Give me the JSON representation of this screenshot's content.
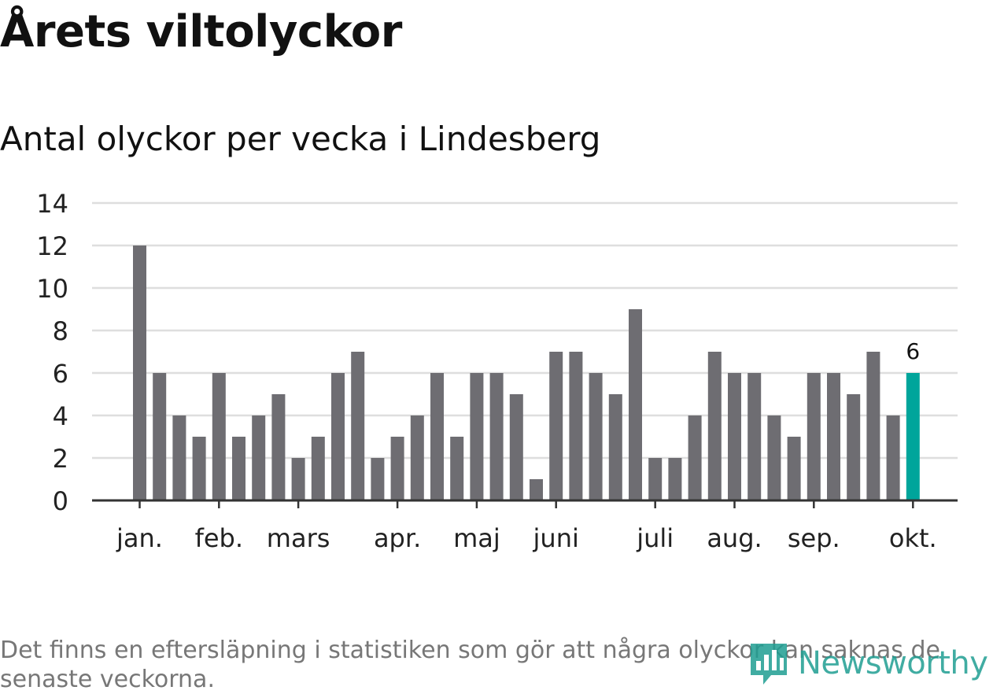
{
  "title": "Årets viltolyckor",
  "subtitle": "Antal olyckor per vecka i Lindesberg",
  "footnote": "Det finns en eftersläpning i statistiken som gör att några olyckor kan saknas de senaste veckorna.",
  "brand": {
    "name": "Newsworthy",
    "icon": "bar-chart-speech-bubble-icon",
    "color": "#1f9e92"
  },
  "colors": {
    "bar": "#6e6d72",
    "highlight": "#00a59b",
    "grid": "#dedede",
    "axis": "#333333"
  },
  "chart_data": {
    "type": "bar",
    "title": "Årets viltolyckor",
    "subtitle": "Antal olyckor per vecka i Lindesberg",
    "xlabel": "",
    "ylabel": "",
    "ylim": [
      0,
      14
    ],
    "yticks": [
      0,
      2,
      4,
      6,
      8,
      10,
      12,
      14
    ],
    "grid": true,
    "weeks": [
      1,
      2,
      3,
      4,
      5,
      6,
      7,
      8,
      9,
      10,
      11,
      12,
      13,
      14,
      15,
      16,
      17,
      18,
      19,
      20,
      21,
      22,
      23,
      24,
      25,
      26,
      27,
      28,
      29,
      30,
      31,
      32,
      33,
      34,
      35,
      36,
      37,
      38,
      39,
      40
    ],
    "values": [
      12,
      6,
      4,
      3,
      6,
      3,
      4,
      5,
      2,
      3,
      6,
      7,
      2,
      3,
      4,
      6,
      3,
      6,
      6,
      5,
      1,
      7,
      7,
      6,
      5,
      9,
      2,
      2,
      4,
      7,
      6,
      6,
      4,
      3,
      6,
      6,
      5,
      7,
      4,
      6
    ],
    "highlight_index": 39,
    "highlight_label": "6",
    "month_ticks": [
      {
        "label": "jan.",
        "week": 1
      },
      {
        "label": "feb.",
        "week": 5
      },
      {
        "label": "mars",
        "week": 9
      },
      {
        "label": "apr.",
        "week": 14
      },
      {
        "label": "maj",
        "week": 18
      },
      {
        "label": "juni",
        "week": 22
      },
      {
        "label": "juli",
        "week": 27
      },
      {
        "label": "aug.",
        "week": 31
      },
      {
        "label": "sep.",
        "week": 35
      },
      {
        "label": "okt.",
        "week": 40
      }
    ]
  }
}
